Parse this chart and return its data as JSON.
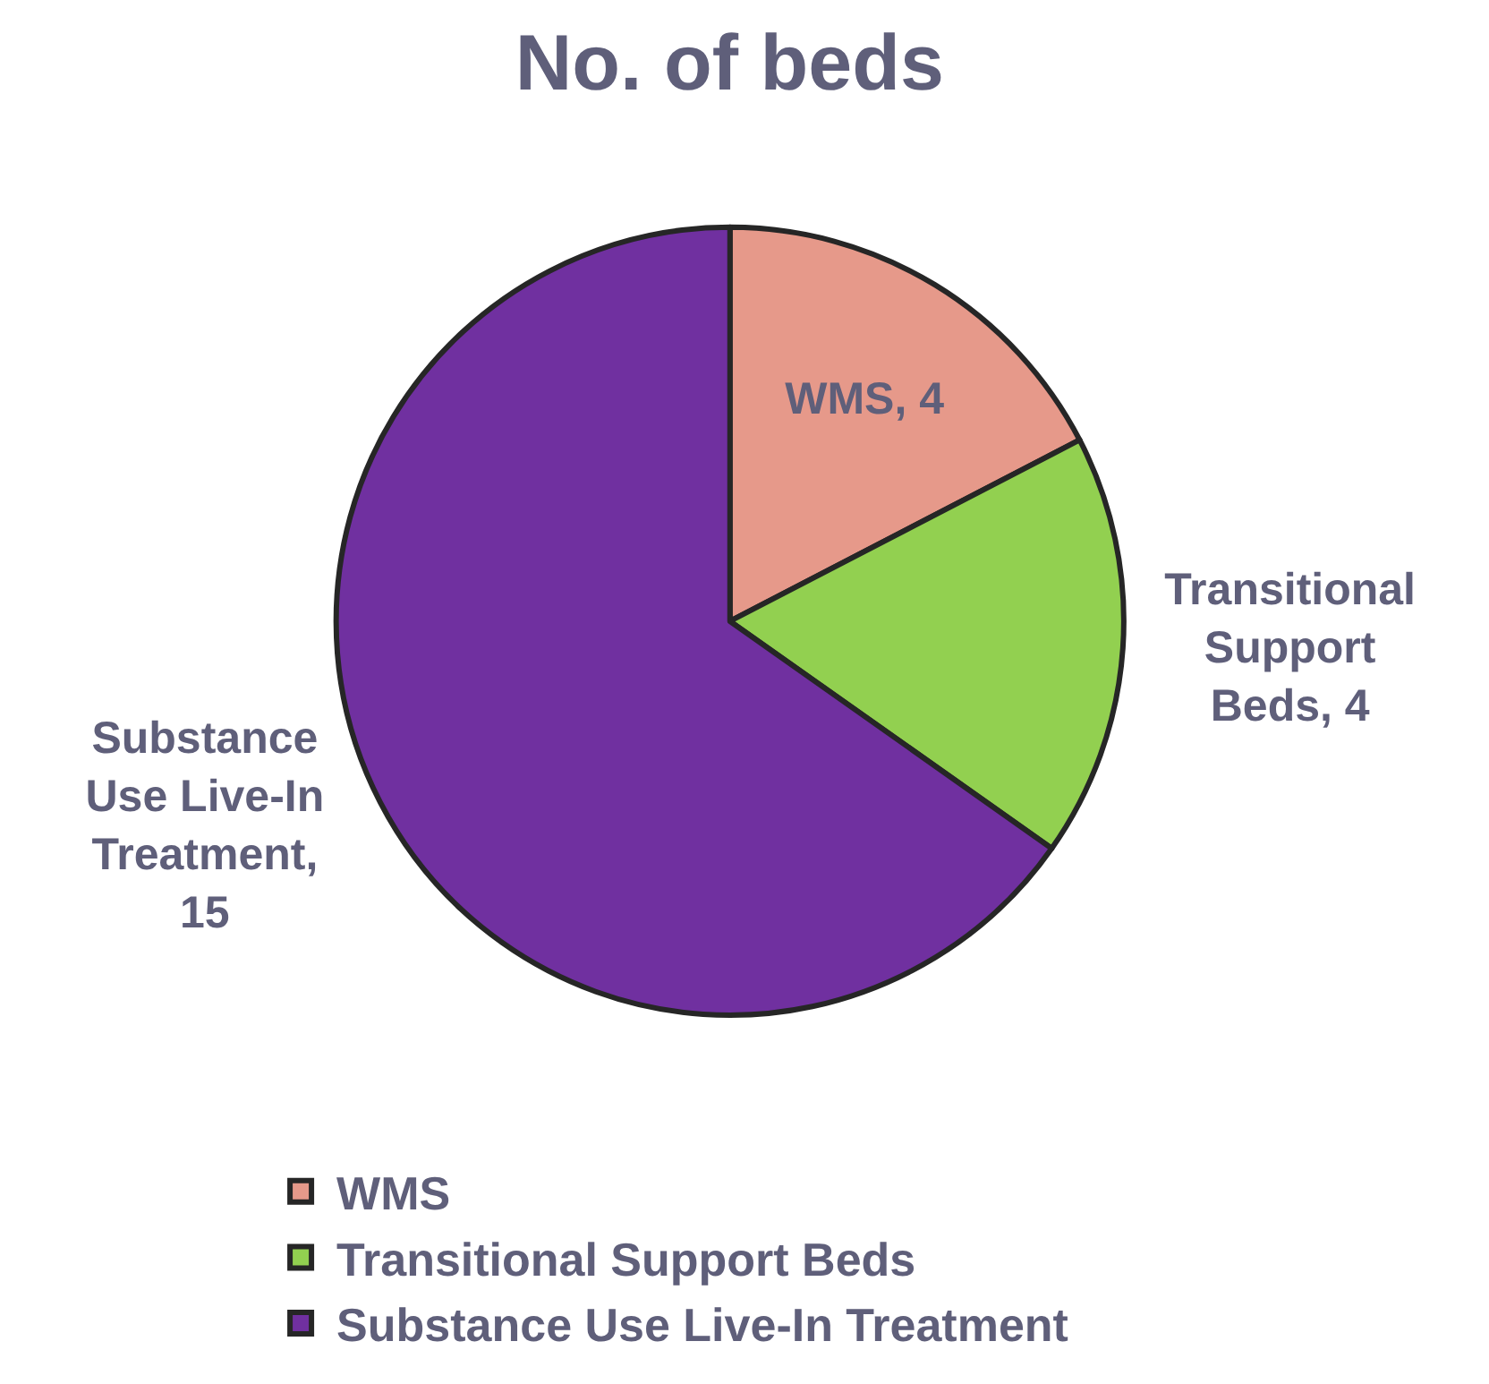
{
  "chart_data": {
    "type": "pie",
    "title": "No. of beds",
    "categories": [
      "WMS",
      "Transitional Support Beds",
      "Substance Use Live-In Treatment"
    ],
    "values": [
      4,
      4,
      15
    ],
    "colors": [
      "#e6998a",
      "#92d050",
      "#7030a0"
    ],
    "value_labels": [
      "WMS, 4",
      "Transitional Support Beds, 4",
      "Substance Use Live-In Treatment, 15"
    ],
    "legend": "bottom"
  }
}
